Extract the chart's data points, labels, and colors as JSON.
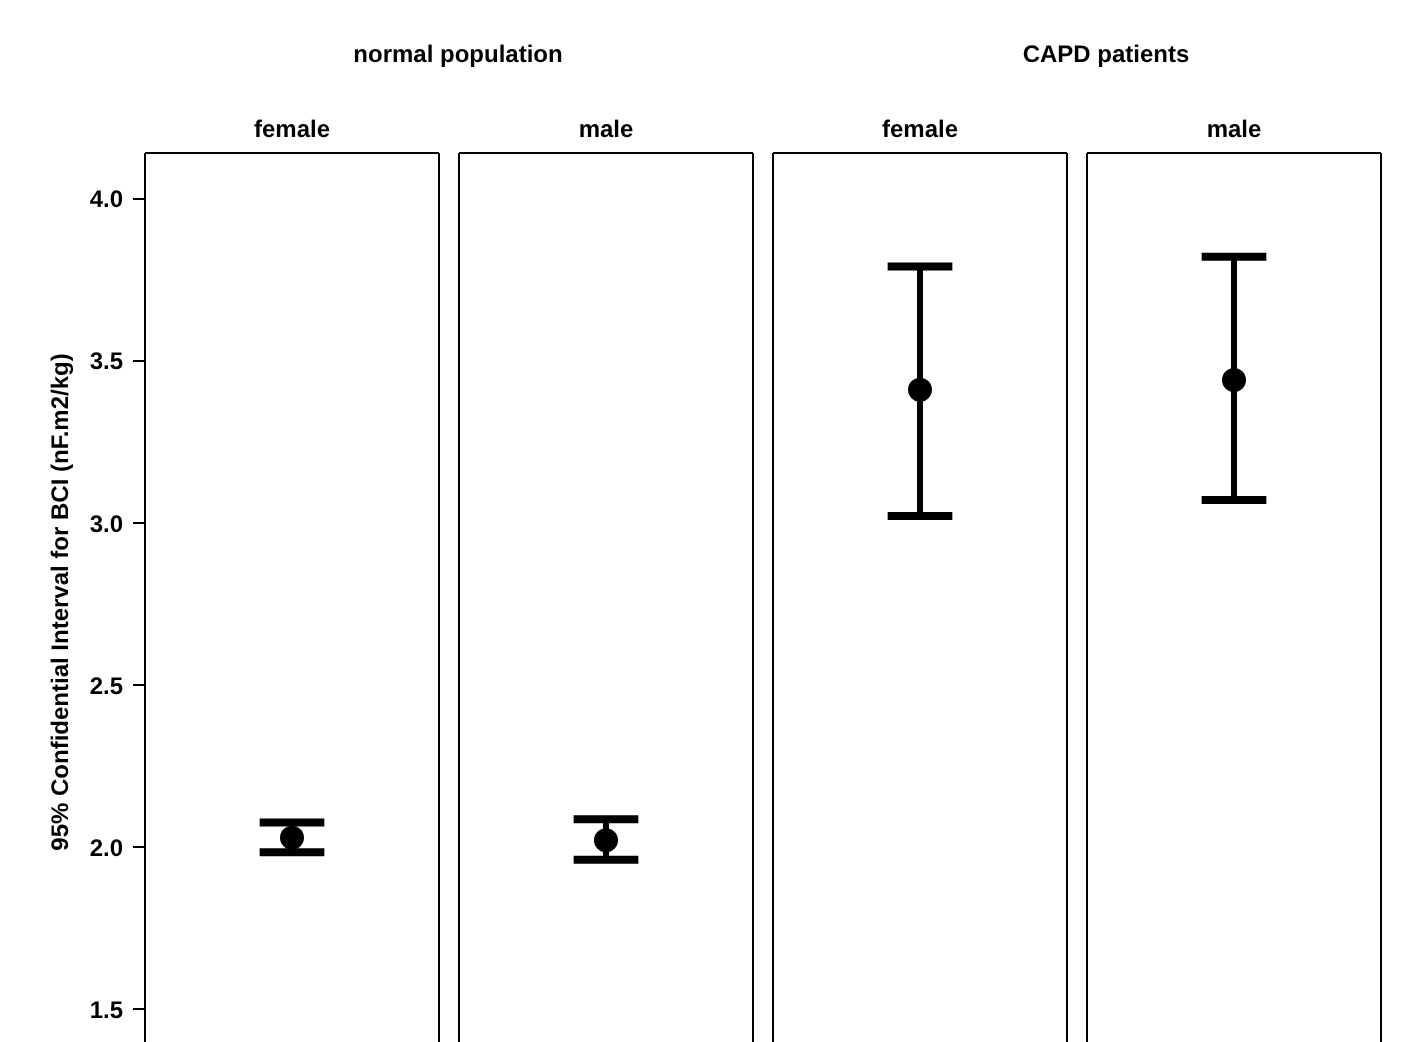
{
  "chart_data": {
    "type": "scatter",
    "ylabel": "95% Confidential Interval for BCI (nF.m2/kg)",
    "annotations": [
      "normal population",
      "CAPD patients"
    ],
    "categories": [
      "female",
      "male",
      "female",
      "male"
    ],
    "values": [
      2.028,
      2.02,
      3.41,
      3.44
    ],
    "errors": [
      [
        1.983,
        2.075
      ],
      [
        1.96,
        2.085
      ],
      [
        3.02,
        3.79
      ],
      [
        3.07,
        3.82
      ]
    ],
    "color": "#000000",
    "marker": "circle",
    "grid": false,
    "ylim": [
      1.37,
      4.14
    ],
    "yticks": [
      1.5,
      {
        "value": 2,
        "label": "2.0"
      },
      2.5,
      {
        "value": 3,
        "label": "3.0"
      },
      3.5,
      {
        "value": 4,
        "label": "4.0"
      }
    ]
  }
}
